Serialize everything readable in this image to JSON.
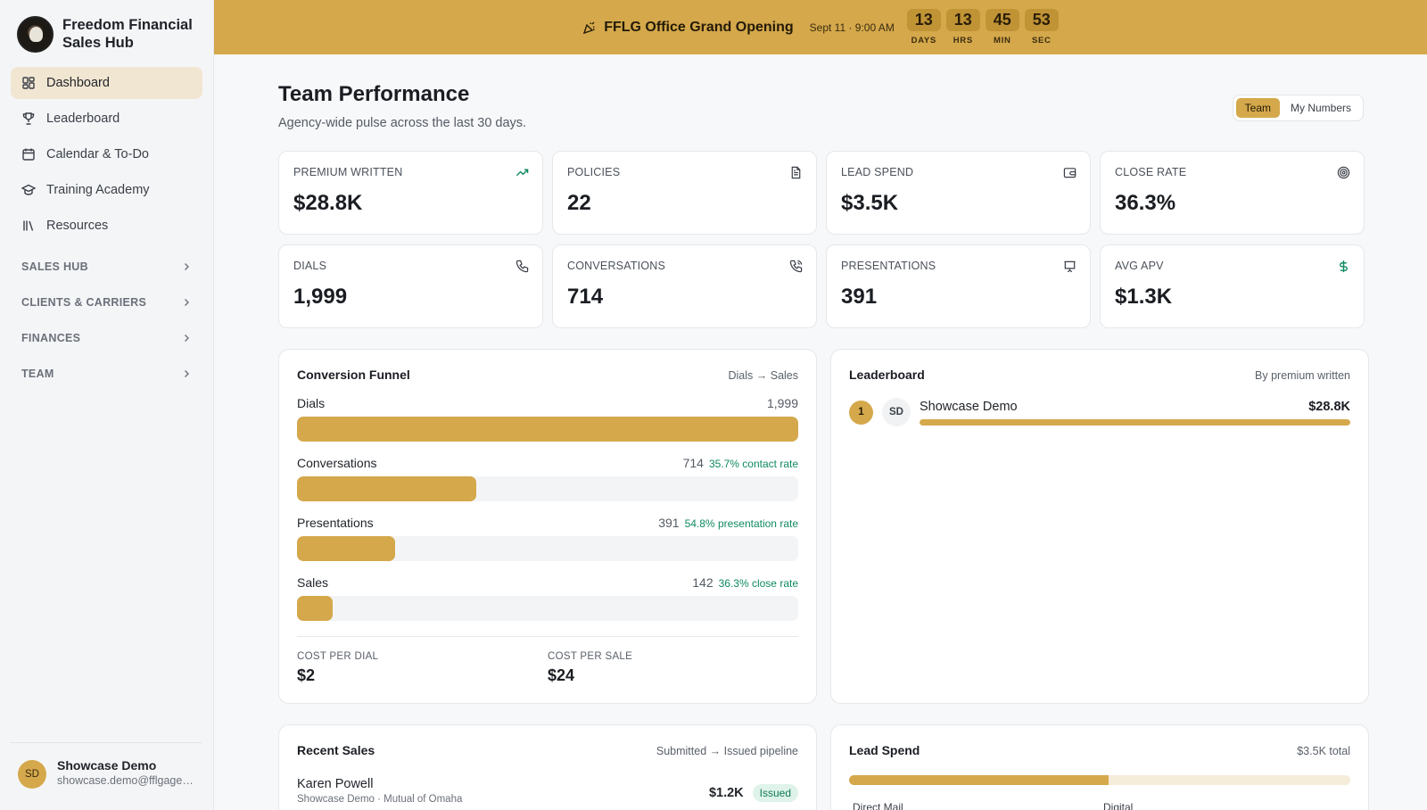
{
  "brand": {
    "name": "Freedom Financial Sales Hub"
  },
  "nav": {
    "items": [
      {
        "label": "Dashboard",
        "icon": "grid-icon",
        "active": true
      },
      {
        "label": "Leaderboard",
        "icon": "trophy-icon"
      },
      {
        "label": "Calendar & To-Do",
        "icon": "calendar-icon"
      },
      {
        "label": "Training Academy",
        "icon": "graduation-cap-icon"
      },
      {
        "label": "Resources",
        "icon": "library-icon"
      }
    ],
    "sections": [
      {
        "label": "SALES HUB"
      },
      {
        "label": "CLIENTS & CARRIERS"
      },
      {
        "label": "FINANCES"
      },
      {
        "label": "TEAM"
      }
    ]
  },
  "user": {
    "initials": "SD",
    "name": "Showcase Demo",
    "email": "showcase.demo@fflgagent..."
  },
  "banner": {
    "title": "FFLG Office Grand Opening",
    "date": "Sept 11 · 9:00 AM",
    "countdown": [
      {
        "value": "13",
        "label": "DAYS"
      },
      {
        "value": "13",
        "label": "HRS"
      },
      {
        "value": "45",
        "label": "MIN"
      },
      {
        "value": "53",
        "label": "SEC"
      }
    ]
  },
  "page": {
    "title": "Team Performance",
    "subtitle": "Agency-wide pulse across the last 30 days.",
    "toggle": {
      "team": "Team",
      "mine": "My Numbers",
      "selected": "Team"
    }
  },
  "stats": [
    {
      "label": "PREMIUM WRITTEN",
      "value": "$28.8K",
      "icon": "trending-up-icon",
      "icon_color": "#0f8a5f"
    },
    {
      "label": "POLICIES",
      "value": "22",
      "icon": "document-icon",
      "icon_color": "#3a3f47"
    },
    {
      "label": "LEAD SPEND",
      "value": "$3.5K",
      "icon": "wallet-icon",
      "icon_color": "#3a3f47"
    },
    {
      "label": "CLOSE RATE",
      "value": "36.3%",
      "icon": "target-icon",
      "icon_color": "#3a3f47"
    },
    {
      "label": "DIALS",
      "value": "1,999",
      "icon": "phone-icon",
      "icon_color": "#3a3f47"
    },
    {
      "label": "CONVERSATIONS",
      "value": "714",
      "icon": "phone-call-icon",
      "icon_color": "#3a3f47"
    },
    {
      "label": "PRESENTATIONS",
      "value": "391",
      "icon": "presentation-icon",
      "icon_color": "#3a3f47"
    },
    {
      "label": "AVG APV",
      "value": "$1.3K",
      "icon": "dollar-icon",
      "icon_color": "#0f8a5f"
    }
  ],
  "funnel": {
    "title": "Conversion Funnel",
    "aside": "Dials → Sales",
    "rows": [
      {
        "label": "Dials",
        "value": "1,999",
        "rate": "",
        "fraction": 1.0
      },
      {
        "label": "Conversations",
        "value": "714",
        "rate": "35.7% contact rate",
        "fraction": 0.357
      },
      {
        "label": "Presentations",
        "value": "391",
        "rate": "54.8% presentation rate",
        "fraction": 0.196
      },
      {
        "label": "Sales",
        "value": "142",
        "rate": "36.3% close rate",
        "fraction": 0.071
      }
    ],
    "cost_per_dial": {
      "label": "COST PER DIAL",
      "value": "$2"
    },
    "cost_per_sale": {
      "label": "COST PER SALE",
      "value": "$24"
    }
  },
  "leaderboard": {
    "title": "Leaderboard",
    "aside": "By premium written",
    "rows": [
      {
        "rank": "1",
        "initials": "SD",
        "name": "Showcase Demo",
        "amount": "$28.8K",
        "fraction": 1.0
      }
    ]
  },
  "recent_sales": {
    "title": "Recent Sales",
    "aside": "Submitted → Issued pipeline",
    "rows": [
      {
        "name": "Karen Powell",
        "sub": "Showcase Demo · Mutual of Omaha",
        "amount": "$1.2K",
        "status": "Issued"
      }
    ]
  },
  "lead_spend": {
    "title": "Lead Spend",
    "aside": "$3.5K total",
    "split_fraction": 0.517,
    "legend": [
      "Direct Mail",
      "Digital"
    ]
  }
}
